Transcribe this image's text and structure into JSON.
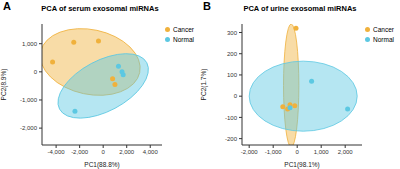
{
  "chart_data": [
    {
      "type": "scatter",
      "panel_label": "A",
      "title": "PCA of serum exosomal miRNAs",
      "x_label": "PC1(88.8%)",
      "y_label": "PC2(8.9%)",
      "xlim": [
        -5200,
        5000
      ],
      "xticks": [
        {
          "value": -4000,
          "label": "-4,000"
        },
        {
          "value": -2000,
          "label": "-2,000"
        },
        0,
        {
          "value": 2000,
          "label": "2,000"
        },
        {
          "value": 4000,
          "label": "4,000"
        }
      ],
      "ylim": [
        -2600,
        1700
      ],
      "yticks": [
        {
          "value": -2000,
          "label": "-2,000"
        },
        {
          "value": -1000,
          "label": "-1,000"
        },
        0,
        {
          "value": 1000,
          "label": "1,000"
        }
      ],
      "legend": "upper right",
      "series": [
        {
          "name": "Cancer",
          "color": "#f0b13c",
          "x": [
            -4300,
            -2500,
            -400,
            800,
            1000
          ],
          "y": [
            350,
            1050,
            1100,
            -250,
            -450
          ],
          "ellipse": {
            "center": [
              -1100,
              350
            ],
            "radii": [
              4300,
              1150
            ],
            "angle": -12
          }
        },
        {
          "name": "Normal",
          "color": "#5cc8e2",
          "x": [
            -2400,
            1300,
            1600,
            1700
          ],
          "y": [
            -1400,
            200,
            0,
            -100
          ],
          "ellipse": {
            "center": [
              0,
              -500
            ],
            "radii": [
              4200,
              900
            ],
            "angle": 28
          }
        }
      ]
    },
    {
      "type": "scatter",
      "panel_label": "B",
      "title": "PCA of urine exosomal miRNAs",
      "x_label": "PC1(98.1%)",
      "y_label": "PC2(1.7%)",
      "xlim": [
        -2300,
        2700
      ],
      "xticks": [
        {
          "value": -2000,
          "label": "-2,000"
        },
        {
          "value": -1000,
          "label": "-1,000"
        },
        0,
        {
          "value": 1000,
          "label": "1,000"
        },
        {
          "value": 2000,
          "label": "2,000"
        }
      ],
      "ylim": [
        -230,
        340
      ],
      "yticks": [
        -200,
        -100,
        0,
        100,
        200,
        300
      ],
      "legend": "upper right",
      "series": [
        {
          "name": "Cancer",
          "color": "#f0b13c",
          "x": [
            -600,
            -400,
            -300,
            -100,
            -50
          ],
          "y": [
            -50,
            -60,
            -40,
            -45,
            320
          ],
          "ellipse": {
            "center": [
              -250,
              50
            ],
            "radii": [
              320,
              290
            ],
            "angle": 0
          }
        },
        {
          "name": "Normal",
          "color": "#5cc8e2",
          "x": [
            600,
            2100,
            -300
          ],
          "y": [
            70,
            -60,
            -55
          ],
          "ellipse": {
            "center": [
              250,
              0
            ],
            "radii": [
              2250,
              165
            ],
            "angle": 0
          }
        }
      ]
    }
  ]
}
